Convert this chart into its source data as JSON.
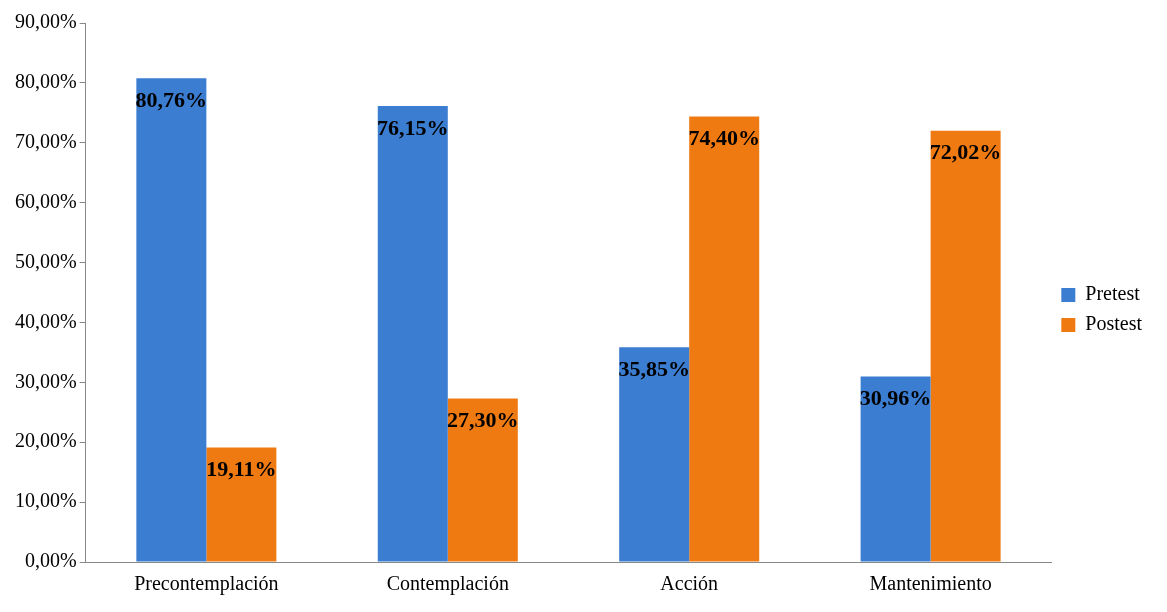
{
  "chart_data": {
    "type": "bar",
    "categories": [
      "Precontemplación",
      "Contemplación",
      "Acción",
      "Mantenimiento"
    ],
    "series": [
      {
        "name": "Pretest",
        "color": "#3b7dd0",
        "values": [
          80.76,
          76.15,
          35.85,
          30.96
        ],
        "value_labels": [
          "80,76%",
          "76,15%",
          "35,85%",
          "30,96%"
        ]
      },
      {
        "name": "Postest",
        "color": "#f07a12",
        "values": [
          19.11,
          27.3,
          74.4,
          72.02
        ],
        "value_labels": [
          "19,11%",
          "27,30%",
          "74,40%",
          "72,02%"
        ]
      }
    ],
    "ylim": [
      0,
      90
    ],
    "yticks": [
      {
        "value": 0,
        "label": "0,00%"
      },
      {
        "value": 10,
        "label": "10,00%"
      },
      {
        "value": 20,
        "label": "20,00%"
      },
      {
        "value": 30,
        "label": "30,00%"
      },
      {
        "value": 40,
        "label": "40,00%"
      },
      {
        "value": 50,
        "label": "50,00%"
      },
      {
        "value": 60,
        "label": "60,00%"
      },
      {
        "value": 70,
        "label": "70,00%"
      },
      {
        "value": 80,
        "label": "80,00%"
      },
      {
        "value": 90,
        "label": "90,00%"
      }
    ],
    "grid": false,
    "legend": "right"
  }
}
